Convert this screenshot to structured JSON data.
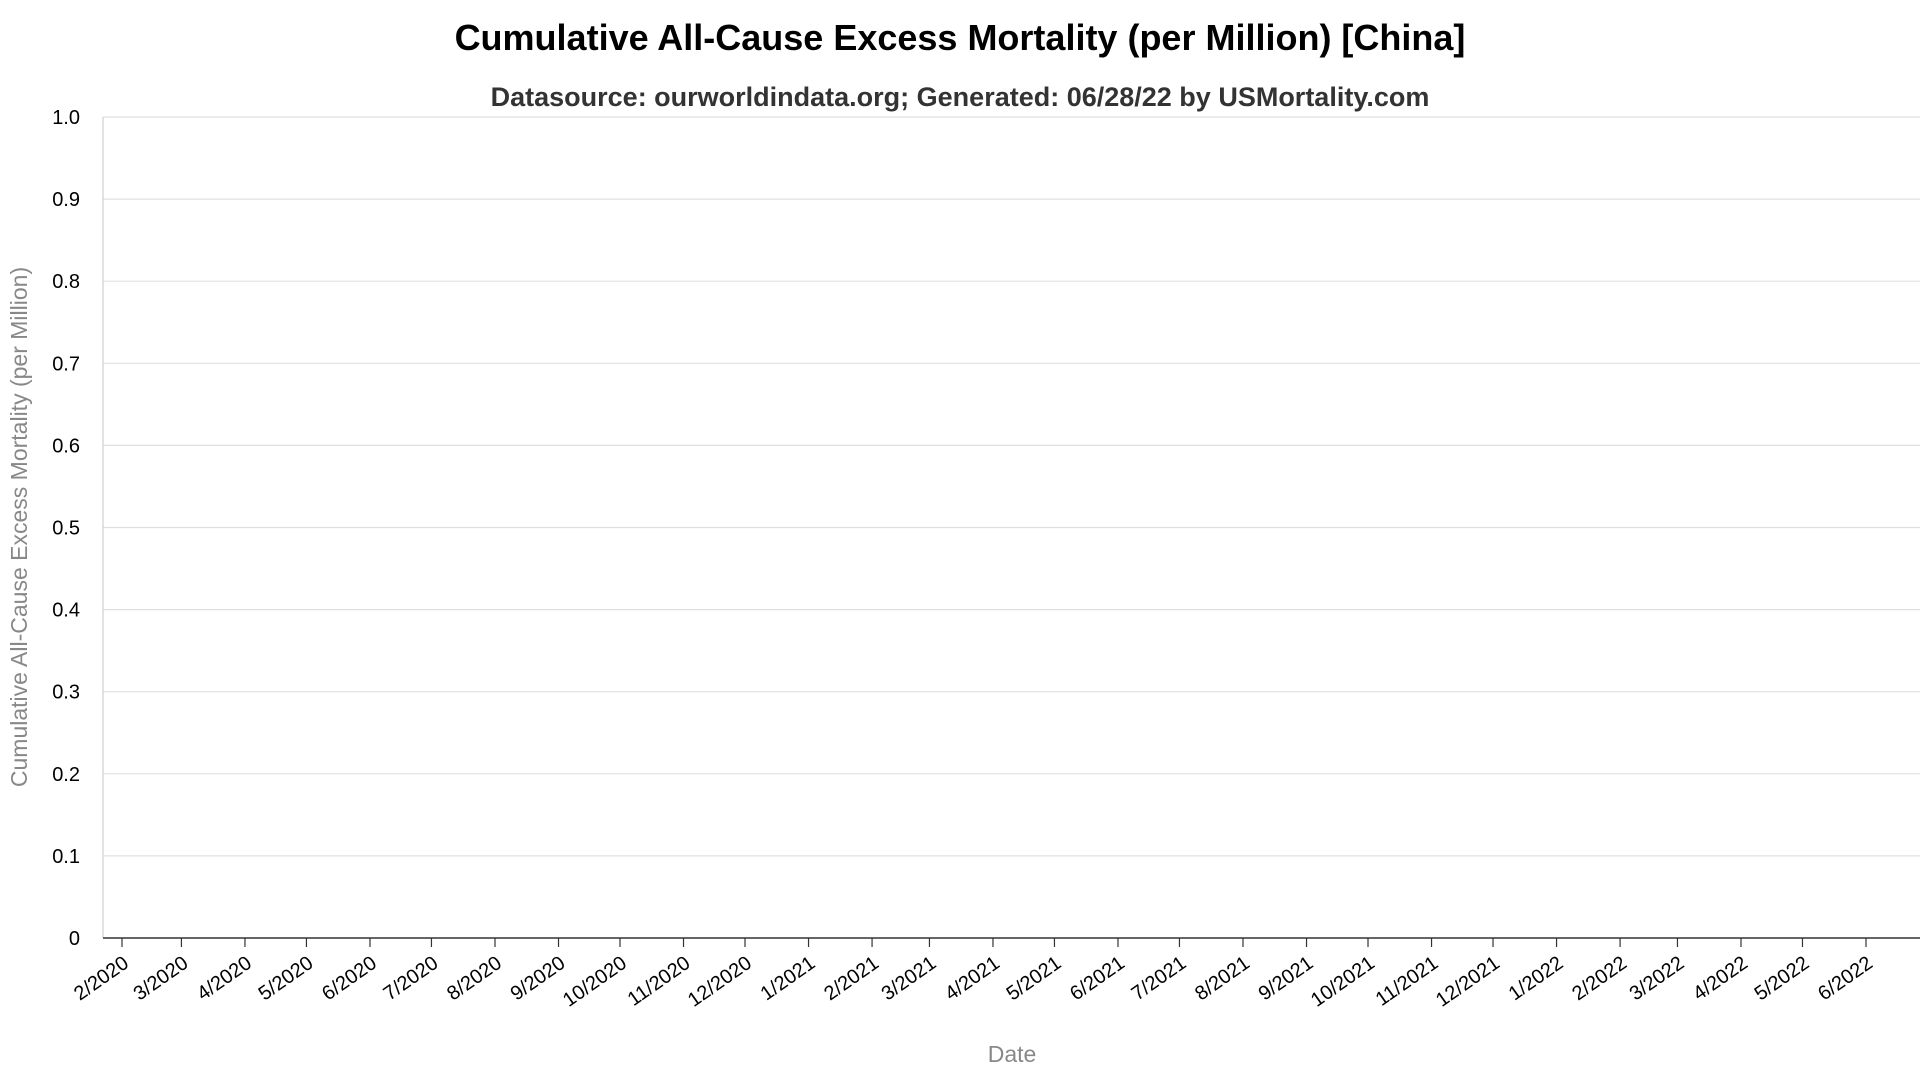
{
  "chart_data": {
    "type": "line",
    "title": "Cumulative All-Cause Excess Mortality (per Million) [China]",
    "subtitle": "Datasource: ourworldindata.org; Generated: 06/28/22 by USMortality.com",
    "xlabel": "Date",
    "ylabel": "Cumulative All-Cause Excess Mortality (per Million)",
    "ylim": [
      0,
      1
    ],
    "y_ticks": [
      "0",
      "0.1",
      "0.2",
      "0.3",
      "0.4",
      "0.5",
      "0.6",
      "0.7",
      "0.8",
      "0.9",
      "1.0"
    ],
    "x_ticks": [
      "2/2020",
      "3/2020",
      "4/2020",
      "5/2020",
      "6/2020",
      "7/2020",
      "8/2020",
      "9/2020",
      "10/2020",
      "11/2020",
      "12/2020",
      "1/2021",
      "2/2021",
      "3/2021",
      "4/2021",
      "5/2021",
      "6/2021",
      "7/2021",
      "8/2021",
      "9/2021",
      "10/2021",
      "11/2021",
      "12/2021",
      "1/2022",
      "2/2022",
      "3/2022",
      "4/2022",
      "5/2022",
      "6/2022"
    ],
    "grid": true,
    "legend": "none",
    "series": []
  }
}
